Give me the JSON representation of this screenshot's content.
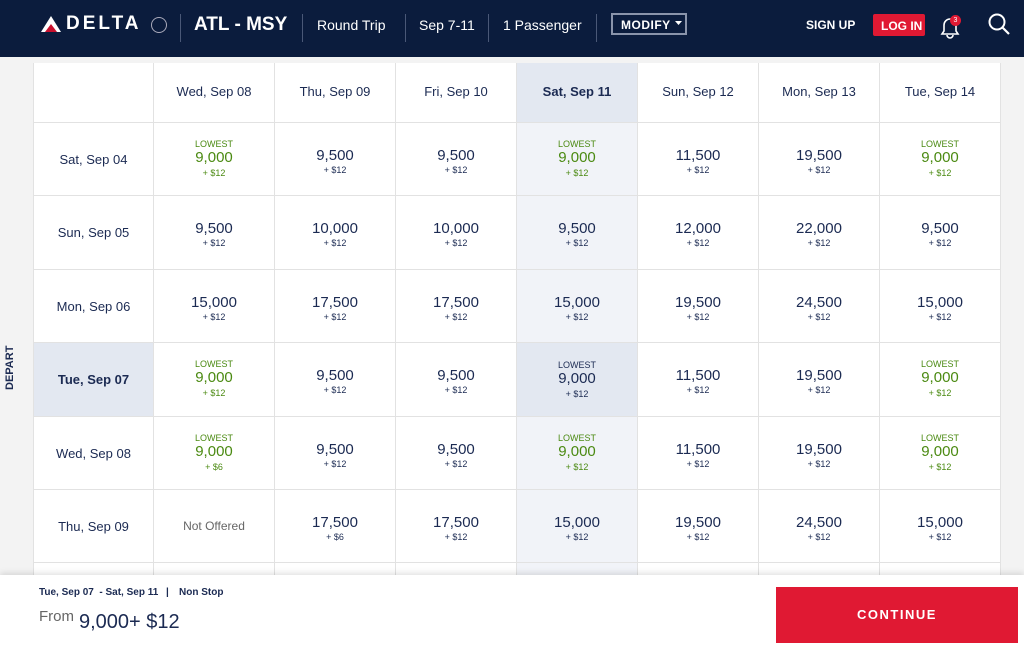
{
  "header": {
    "logo": "DELTA",
    "route": "ATL - MSY",
    "trip_type": "Round Trip",
    "dates": "Sep 7-11",
    "passengers": "1 Passenger",
    "modify": "MODIFY",
    "sign_up": "SIGN UP",
    "log_in": "LOG IN",
    "notifications": "3"
  },
  "grid": {
    "axis_label": "DEPART",
    "columns": [
      {
        "label": "Wed, Sep 08"
      },
      {
        "label": "Thu, Sep 09"
      },
      {
        "label": "Fri, Sep 10"
      },
      {
        "label": "Sat, Sep 11",
        "selected": true
      },
      {
        "label": "Sun, Sep 12"
      },
      {
        "label": "Mon, Sep 13"
      },
      {
        "label": "Tue, Sep 14"
      }
    ],
    "rows": [
      {
        "label": "Sat, Sep 04",
        "cells": [
          {
            "tag": "LOWEST",
            "miles": "9,000",
            "fee": "+ $12"
          },
          {
            "miles": "9,500",
            "fee": "+ $12"
          },
          {
            "miles": "9,500",
            "fee": "+ $12"
          },
          {
            "tag": "LOWEST",
            "miles": "9,000",
            "fee": "+ $12"
          },
          {
            "miles": "11,500",
            "fee": "+ $12"
          },
          {
            "miles": "19,500",
            "fee": "+ $12"
          },
          {
            "tag": "LOWEST",
            "miles": "9,000",
            "fee": "+ $12"
          }
        ]
      },
      {
        "label": "Sun, Sep 05",
        "cells": [
          {
            "miles": "9,500",
            "fee": "+ $12"
          },
          {
            "miles": "10,000",
            "fee": "+ $12"
          },
          {
            "miles": "10,000",
            "fee": "+ $12"
          },
          {
            "miles": "9,500",
            "fee": "+ $12"
          },
          {
            "miles": "12,000",
            "fee": "+ $12"
          },
          {
            "miles": "22,000",
            "fee": "+ $12"
          },
          {
            "miles": "9,500",
            "fee": "+ $12"
          }
        ]
      },
      {
        "label": "Mon, Sep 06",
        "cells": [
          {
            "miles": "15,000",
            "fee": "+ $12"
          },
          {
            "miles": "17,500",
            "fee": "+ $12"
          },
          {
            "miles": "17,500",
            "fee": "+ $12"
          },
          {
            "miles": "15,000",
            "fee": "+ $12"
          },
          {
            "miles": "19,500",
            "fee": "+ $12"
          },
          {
            "miles": "24,500",
            "fee": "+ $12"
          },
          {
            "miles": "15,000",
            "fee": "+ $12"
          }
        ]
      },
      {
        "label": "Tue, Sep 07",
        "selected": true,
        "cells": [
          {
            "tag": "LOWEST",
            "miles": "9,000",
            "fee": "+ $12"
          },
          {
            "miles": "9,500",
            "fee": "+ $12"
          },
          {
            "miles": "9,500",
            "fee": "+ $12"
          },
          {
            "tag": "LOWEST",
            "miles": "9,000",
            "fee": "+ $12"
          },
          {
            "miles": "11,500",
            "fee": "+ $12"
          },
          {
            "miles": "19,500",
            "fee": "+ $12"
          },
          {
            "tag": "LOWEST",
            "miles": "9,000",
            "fee": "+ $12"
          }
        ]
      },
      {
        "label": "Wed, Sep 08",
        "cells": [
          {
            "tag": "LOWEST",
            "miles": "9,000",
            "fee": "+ $6"
          },
          {
            "miles": "9,500",
            "fee": "+ $12"
          },
          {
            "miles": "9,500",
            "fee": "+ $12"
          },
          {
            "tag": "LOWEST",
            "miles": "9,000",
            "fee": "+ $12"
          },
          {
            "miles": "11,500",
            "fee": "+ $12"
          },
          {
            "miles": "19,500",
            "fee": "+ $12"
          },
          {
            "tag": "LOWEST",
            "miles": "9,000",
            "fee": "+ $12"
          }
        ]
      },
      {
        "label": "Thu, Sep 09",
        "cells": [
          {
            "note": "Not Offered"
          },
          {
            "miles": "17,500",
            "fee": "+ $6"
          },
          {
            "miles": "17,500",
            "fee": "+ $12"
          },
          {
            "miles": "15,000",
            "fee": "+ $12"
          },
          {
            "miles": "19,500",
            "fee": "+ $12"
          },
          {
            "miles": "24,500",
            "fee": "+ $12"
          },
          {
            "miles": "15,000",
            "fee": "+ $12"
          }
        ]
      }
    ]
  },
  "footer": {
    "trip": "Tue, Sep 07  - Sat, Sep 11",
    "separator": "|",
    "stops": "Non Stop",
    "from": "From",
    "price": "9,000+ $12",
    "continue": "CONTINUE"
  }
}
